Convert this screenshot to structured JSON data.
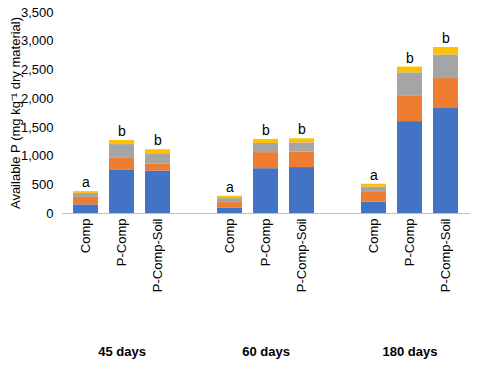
{
  "chart_data": {
    "type": "bar",
    "stacked": true,
    "ylabel": "Available P (mg kg⁻¹ dry material)",
    "categories": [
      "Comp",
      "P-Comp",
      "P-Comp-Soil",
      "Comp",
      "P-Comp",
      "P-Comp-Soil",
      "Comp",
      "P-Comp",
      "P-Comp-Soil"
    ],
    "groups": [
      "45 days",
      "45 days",
      "45 days",
      "60 days",
      "60 days",
      "60 days",
      "180 days",
      "180 days",
      "180 days"
    ],
    "annotations": [
      "a",
      "b",
      "b",
      "a",
      "b",
      "b",
      "a",
      "b",
      "b"
    ],
    "series": [
      {
        "color": "#4472c4",
        "values": [
          150,
          750,
          740,
          90,
          780,
          800,
          200,
          1600,
          1840
        ]
      },
      {
        "color": "#ed7d31",
        "values": [
          130,
          220,
          120,
          100,
          280,
          270,
          180,
          450,
          510
        ]
      },
      {
        "color": "#a5a5a5",
        "values": [
          70,
          230,
          180,
          70,
          160,
          160,
          80,
          400,
          410
        ]
      },
      {
        "color": "#ffc000",
        "values": [
          30,
          70,
          70,
          40,
          70,
          70,
          50,
          100,
          130
        ]
      }
    ],
    "ylim": [
      0,
      3500
    ],
    "yticks": [
      0,
      500,
      {
        "value": 1000,
        "label": "1,000"
      },
      {
        "value": 1500,
        "label": "1,500"
      },
      {
        "value": 2000,
        "label": "2,000"
      },
      {
        "value": 2500,
        "label": "2,500"
      },
      {
        "value": 3000,
        "label": "3,000"
      },
      {
        "value": 3500,
        "label": "3,500"
      }
    ],
    "grid": false
  }
}
